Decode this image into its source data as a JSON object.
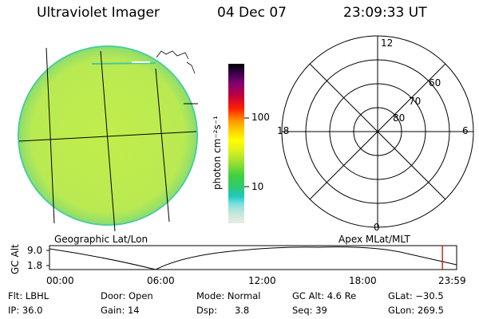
{
  "header": {
    "title": "Ultraviolet Imager",
    "date": "04 Dec 07",
    "time": "23:09:33 UT"
  },
  "colorbar": {
    "label": "photon cm⁻²s⁻¹",
    "ticks": [
      "100",
      "10"
    ]
  },
  "polar": {
    "clock_labels": [
      "12",
      "18",
      "6",
      "0"
    ],
    "lat_labels": [
      "60",
      "70",
      "80"
    ]
  },
  "captions": {
    "left": "Geographic Lat/Lon",
    "right": "Apex MLat/MLT"
  },
  "timeline": {
    "ylabel": "GC Alt",
    "yticks": [
      "9.0",
      "1.8"
    ],
    "xticks": [
      "00:00",
      "06:00",
      "12:00",
      "18:00",
      "23:59"
    ],
    "current_time_fraction": 0.965,
    "marker_color": "#dd0000"
  },
  "info": {
    "flt": "Flt: LBHL",
    "ip": "IP: 36.0",
    "door": "Door: Open",
    "gain": "Gain: 14",
    "mode": "Mode: Normal",
    "dsp": "Dsp:      3.8",
    "gcalt": "GC Alt: 4.6 Re",
    "seq": "Seq: 39",
    "glat": "GLat: −30.5",
    "glon": "GLon: 269.5"
  },
  "colors": {
    "disk_main": "#c6ee3e",
    "disk_rim": "#4fcf8e"
  }
}
